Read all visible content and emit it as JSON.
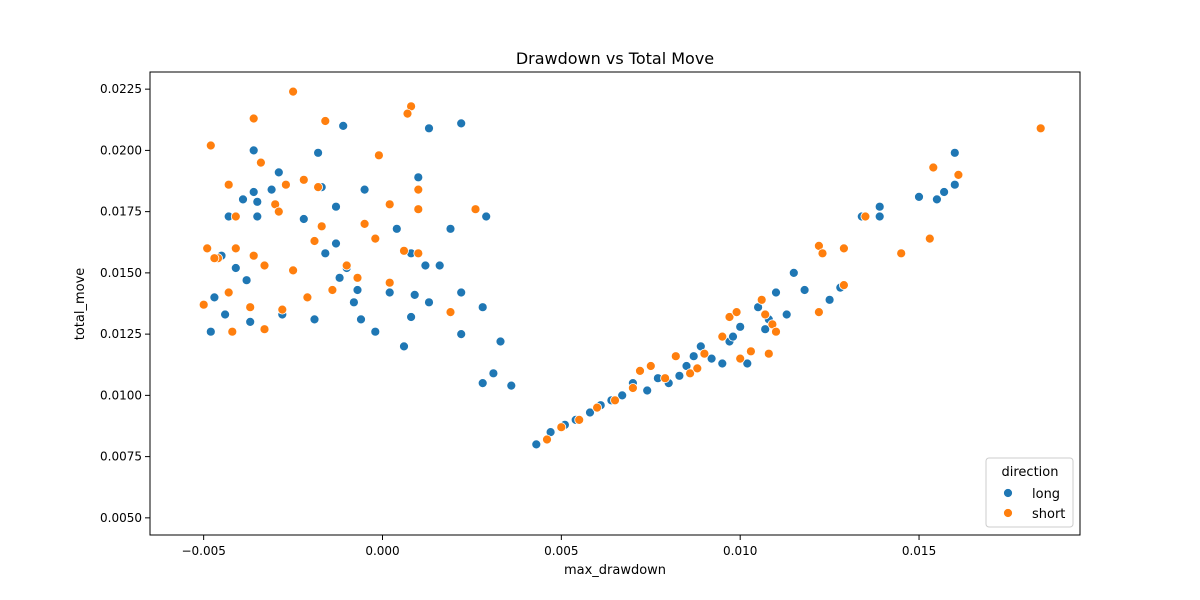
{
  "chart_data": {
    "type": "scatter",
    "title": "Drawdown vs Total Move",
    "xlabel": "max_drawdown",
    "ylabel": "total_move",
    "xlim": [
      -0.0065,
      0.0195
    ],
    "ylim": [
      0.0043,
      0.0232
    ],
    "xticks": [
      -0.005,
      0.0,
      0.005,
      0.01,
      0.015
    ],
    "xtick_labels": [
      "−0.005",
      "0.000",
      "0.005",
      "0.010",
      "0.015"
    ],
    "yticks": [
      0.005,
      0.0075,
      0.01,
      0.0125,
      0.015,
      0.0175,
      0.02,
      0.0225
    ],
    "ytick_labels": [
      "0.0050",
      "0.0075",
      "0.0100",
      "0.0125",
      "0.0150",
      "0.0175",
      "0.0200",
      "0.0225"
    ],
    "grid": false,
    "legend": {
      "title": "direction",
      "position": "bottom-right"
    },
    "series": [
      {
        "name": "long",
        "color": "#1f77b4",
        "points": [
          [
            -0.0036,
            0.02
          ],
          [
            -0.0018,
            0.0199
          ],
          [
            -0.0011,
            0.021
          ],
          [
            0.0013,
            0.0209
          ],
          [
            0.0022,
            0.0211
          ],
          [
            0.001,
            0.0189
          ],
          [
            -0.0029,
            0.0191
          ],
          [
            -0.0036,
            0.0183
          ],
          [
            -0.0031,
            0.0184
          ],
          [
            -0.0035,
            0.0179
          ],
          [
            -0.0039,
            0.018
          ],
          [
            -0.0017,
            0.0185
          ],
          [
            -0.0013,
            0.0177
          ],
          [
            -0.0005,
            0.0184
          ],
          [
            0.001,
            0.0184
          ],
          [
            -0.0043,
            0.0173
          ],
          [
            -0.0035,
            0.0173
          ],
          [
            -0.0022,
            0.0172
          ],
          [
            0.0029,
            0.0173
          ],
          [
            -0.0045,
            0.0157
          ],
          [
            -0.0041,
            0.0152
          ],
          [
            -0.0038,
            0.0147
          ],
          [
            -0.0016,
            0.0158
          ],
          [
            -0.0013,
            0.0162
          ],
          [
            0.0004,
            0.0168
          ],
          [
            0.0019,
            0.0168
          ],
          [
            0.0008,
            0.0158
          ],
          [
            0.0012,
            0.0153
          ],
          [
            0.0016,
            0.0153
          ],
          [
            -0.001,
            0.0152
          ],
          [
            -0.0012,
            0.0148
          ],
          [
            -0.0007,
            0.0143
          ],
          [
            0.0002,
            0.0142
          ],
          [
            0.0009,
            0.0141
          ],
          [
            0.0022,
            0.0142
          ],
          [
            0.0013,
            0.0138
          ],
          [
            -0.0047,
            0.014
          ],
          [
            -0.0044,
            0.0133
          ],
          [
            -0.0037,
            0.013
          ],
          [
            -0.0028,
            0.0133
          ],
          [
            -0.0019,
            0.0131
          ],
          [
            -0.0008,
            0.0138
          ],
          [
            -0.0006,
            0.0131
          ],
          [
            0.0008,
            0.0132
          ],
          [
            0.0028,
            0.0136
          ],
          [
            0.0033,
            0.0122
          ],
          [
            0.0022,
            0.0125
          ],
          [
            0.0006,
            0.012
          ],
          [
            -0.0002,
            0.0126
          ],
          [
            -0.0048,
            0.0126
          ],
          [
            0.0031,
            0.0109
          ],
          [
            0.0028,
            0.0105
          ],
          [
            0.0036,
            0.0104
          ],
          [
            0.0043,
            0.008
          ],
          [
            0.0047,
            0.0085
          ],
          [
            0.0051,
            0.0088
          ],
          [
            0.0054,
            0.009
          ],
          [
            0.0058,
            0.0093
          ],
          [
            0.0061,
            0.0096
          ],
          [
            0.0064,
            0.0098
          ],
          [
            0.0067,
            0.01
          ],
          [
            0.007,
            0.0105
          ],
          [
            0.0074,
            0.0102
          ],
          [
            0.0077,
            0.0107
          ],
          [
            0.008,
            0.0105
          ],
          [
            0.0083,
            0.0108
          ],
          [
            0.0085,
            0.0112
          ],
          [
            0.0087,
            0.0116
          ],
          [
            0.0089,
            0.012
          ],
          [
            0.0092,
            0.0115
          ],
          [
            0.0095,
            0.0113
          ],
          [
            0.0097,
            0.0122
          ],
          [
            0.0098,
            0.0124
          ],
          [
            0.01,
            0.0128
          ],
          [
            0.0102,
            0.0113
          ],
          [
            0.0105,
            0.0136
          ],
          [
            0.0107,
            0.0127
          ],
          [
            0.0108,
            0.0131
          ],
          [
            0.011,
            0.0142
          ],
          [
            0.0113,
            0.0133
          ],
          [
            0.011,
            0.0126
          ],
          [
            0.0115,
            0.015
          ],
          [
            0.0118,
            0.0143
          ],
          [
            0.0125,
            0.0139
          ],
          [
            0.0128,
            0.0144
          ],
          [
            0.0134,
            0.0173
          ],
          [
            0.0139,
            0.0177
          ],
          [
            0.0139,
            0.0173
          ],
          [
            0.015,
            0.0181
          ],
          [
            0.0155,
            0.018
          ],
          [
            0.0157,
            0.0183
          ],
          [
            0.016,
            0.0186
          ],
          [
            0.016,
            0.0199
          ]
        ]
      },
      {
        "name": "short",
        "color": "#ff7f0e",
        "points": [
          [
            -0.0025,
            0.0224
          ],
          [
            0.0008,
            0.0218
          ],
          [
            0.0007,
            0.0215
          ],
          [
            -0.0036,
            0.0213
          ],
          [
            -0.0016,
            0.0212
          ],
          [
            -0.0048,
            0.0202
          ],
          [
            -0.0034,
            0.0195
          ],
          [
            -0.0001,
            0.0198
          ],
          [
            0.0184,
            0.0209
          ],
          [
            -0.0022,
            0.0188
          ],
          [
            -0.0043,
            0.0186
          ],
          [
            -0.0027,
            0.0186
          ],
          [
            -0.0018,
            0.0185
          ],
          [
            0.001,
            0.0184
          ],
          [
            0.0002,
            0.0178
          ],
          [
            -0.003,
            0.0178
          ],
          [
            -0.0029,
            0.0175
          ],
          [
            -0.0041,
            0.0173
          ],
          [
            0.0026,
            0.0176
          ],
          [
            0.001,
            0.0176
          ],
          [
            -0.0049,
            0.016
          ],
          [
            -0.0046,
            0.0156
          ],
          [
            -0.0041,
            0.016
          ],
          [
            -0.0036,
            0.0157
          ],
          [
            -0.0047,
            0.0156
          ],
          [
            -0.0033,
            0.0153
          ],
          [
            -0.0019,
            0.0163
          ],
          [
            -0.0017,
            0.0169
          ],
          [
            -0.0005,
            0.017
          ],
          [
            -0.0002,
            0.0164
          ],
          [
            0.0006,
            0.0159
          ],
          [
            0.001,
            0.0158
          ],
          [
            -0.001,
            0.0153
          ],
          [
            -0.0025,
            0.0151
          ],
          [
            -0.005,
            0.0137
          ],
          [
            -0.0043,
            0.0142
          ],
          [
            -0.0037,
            0.0136
          ],
          [
            -0.0028,
            0.0135
          ],
          [
            -0.0021,
            0.014
          ],
          [
            -0.0014,
            0.0143
          ],
          [
            -0.0007,
            0.0148
          ],
          [
            0.0002,
            0.0146
          ],
          [
            0.0019,
            0.0134
          ],
          [
            -0.0033,
            0.0127
          ],
          [
            -0.0042,
            0.0126
          ],
          [
            0.0046,
            0.0082
          ],
          [
            0.005,
            0.0087
          ],
          [
            0.0055,
            0.009
          ],
          [
            0.006,
            0.0095
          ],
          [
            0.0065,
            0.0098
          ],
          [
            0.007,
            0.0103
          ],
          [
            0.0072,
            0.011
          ],
          [
            0.0075,
            0.0112
          ],
          [
            0.0079,
            0.0107
          ],
          [
            0.0082,
            0.0116
          ],
          [
            0.0086,
            0.0109
          ],
          [
            0.0088,
            0.0111
          ],
          [
            0.009,
            0.0117
          ],
          [
            0.0095,
            0.0124
          ],
          [
            0.0097,
            0.0132
          ],
          [
            0.0099,
            0.0134
          ],
          [
            0.01,
            0.0115
          ],
          [
            0.0103,
            0.0118
          ],
          [
            0.0106,
            0.0139
          ],
          [
            0.0107,
            0.0133
          ],
          [
            0.0109,
            0.0129
          ],
          [
            0.011,
            0.0126
          ],
          [
            0.0108,
            0.0117
          ],
          [
            0.0122,
            0.0161
          ],
          [
            0.0123,
            0.0158
          ],
          [
            0.0122,
            0.0134
          ],
          [
            0.0129,
            0.0145
          ],
          [
            0.0129,
            0.016
          ],
          [
            0.0135,
            0.0173
          ],
          [
            0.0145,
            0.0158
          ],
          [
            0.0153,
            0.0164
          ],
          [
            0.0154,
            0.0193
          ],
          [
            0.0161,
            0.019
          ]
        ]
      }
    ]
  }
}
